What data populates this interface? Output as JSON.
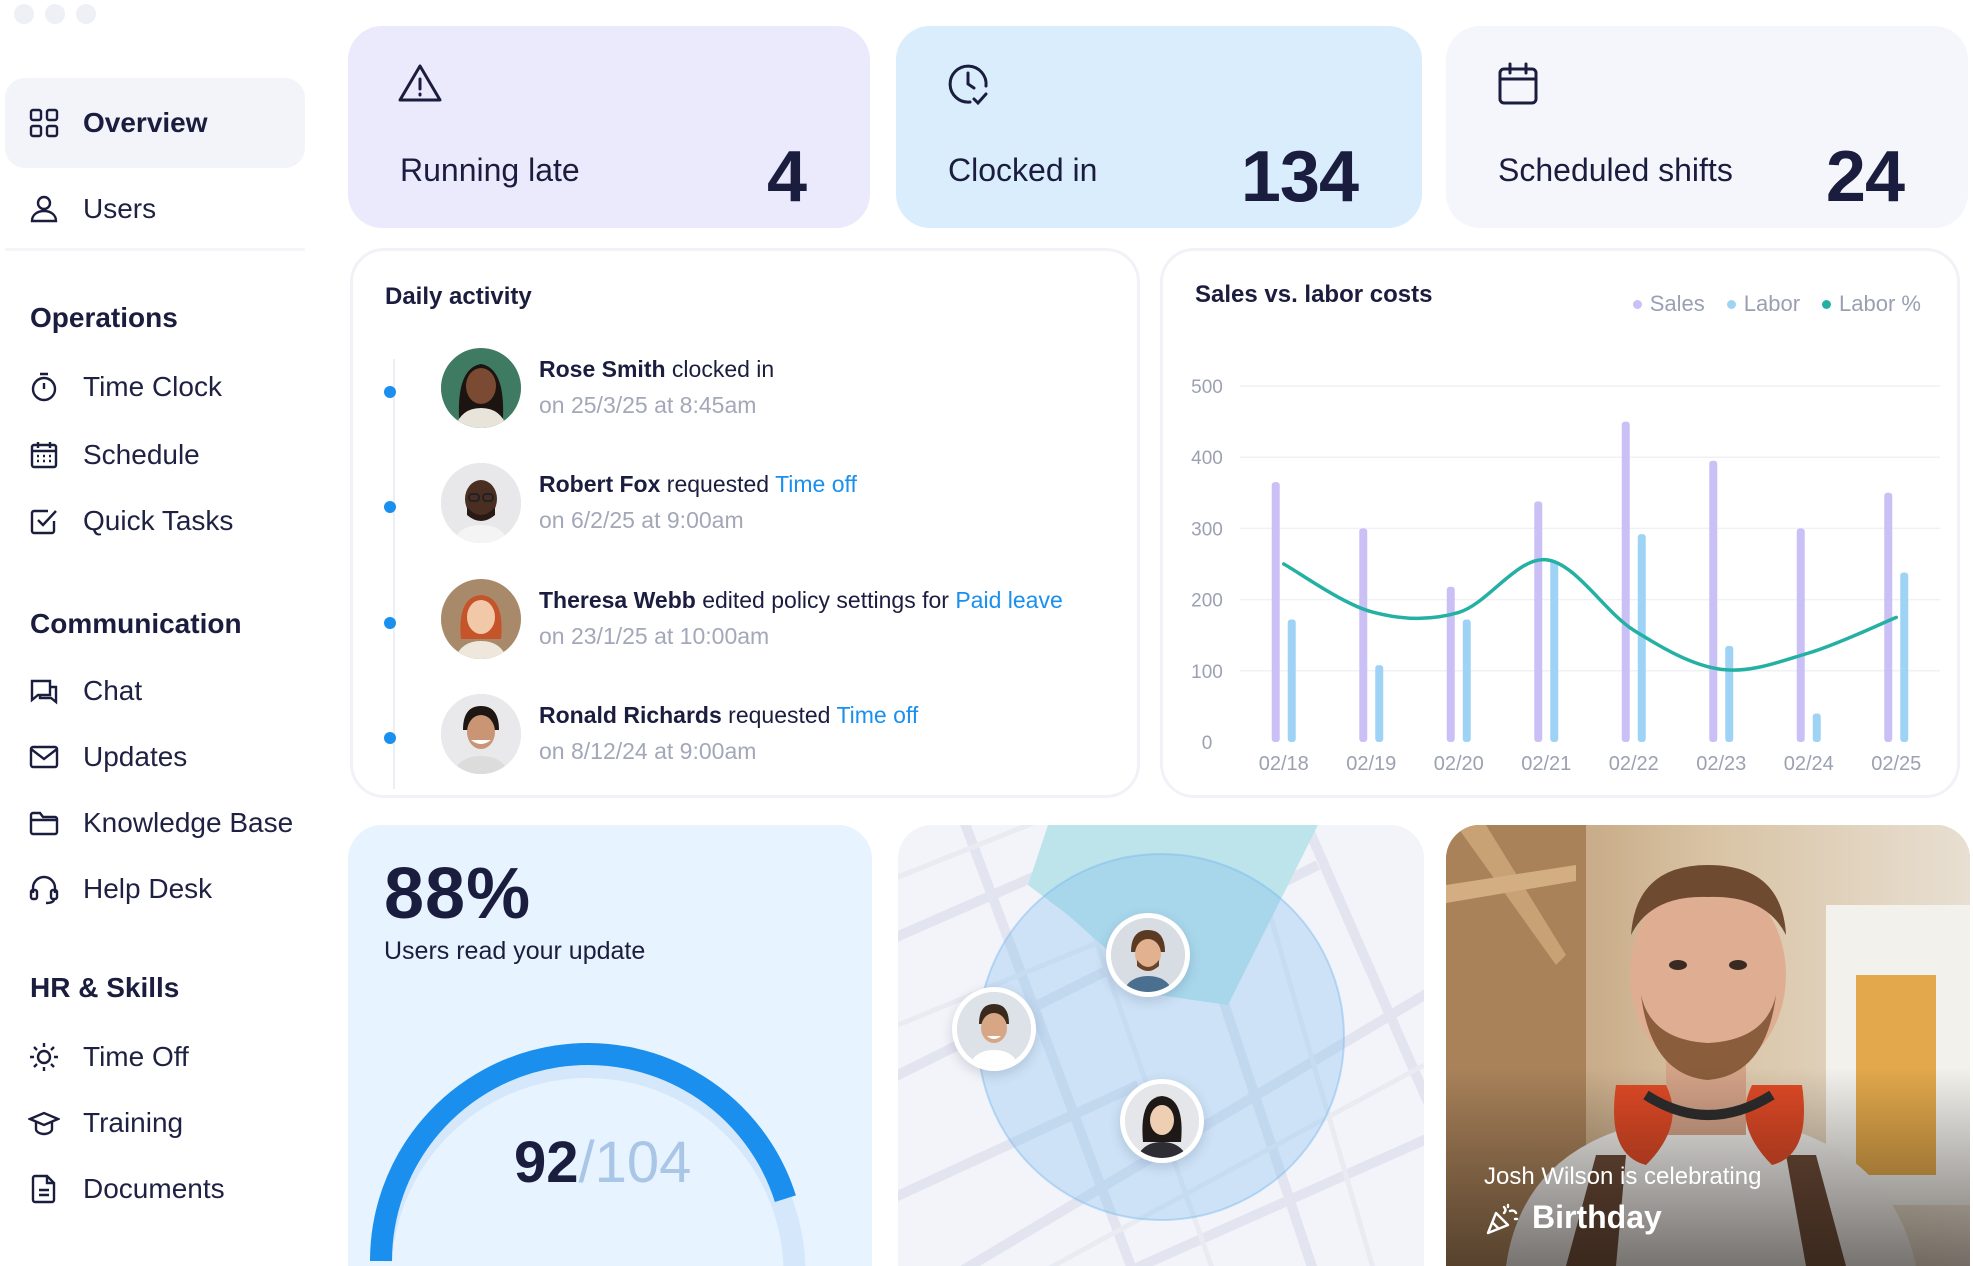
{
  "sidebar": {
    "top_items": [
      {
        "label": "Overview",
        "icon": "grid-icon",
        "active": true
      },
      {
        "label": "Users",
        "icon": "user-icon"
      }
    ],
    "sections": [
      {
        "title": "Operations",
        "items": [
          {
            "label": "Time Clock",
            "icon": "stopwatch-icon"
          },
          {
            "label": "Schedule",
            "icon": "calendar-grid-icon"
          },
          {
            "label": "Quick Tasks",
            "icon": "checkbox-icon"
          }
        ]
      },
      {
        "title": "Communication",
        "items": [
          {
            "label": "Chat",
            "icon": "chat-icon"
          },
          {
            "label": "Updates",
            "icon": "mail-icon"
          },
          {
            "label": "Knowledge Base",
            "icon": "folder-icon"
          },
          {
            "label": "Help Desk",
            "icon": "headset-icon"
          }
        ]
      },
      {
        "title": "HR & Skills",
        "items": [
          {
            "label": "Time Off",
            "icon": "sun-icon"
          },
          {
            "label": "Training",
            "icon": "graduation-cap-icon"
          },
          {
            "label": "Documents",
            "icon": "document-icon"
          }
        ]
      }
    ]
  },
  "stats": [
    {
      "label": "Running late",
      "value": "4",
      "icon": "warning-icon",
      "bg": "#ebe9fc"
    },
    {
      "label": "Clocked in",
      "value": "134",
      "icon": "clock-check-icon",
      "bg": "#d9edfd"
    },
    {
      "label": "Scheduled shifts",
      "value": "24",
      "icon": "calendar-icon",
      "bg": "#f4f6fb"
    }
  ],
  "activity": {
    "title": "Daily activity",
    "items": [
      {
        "name": "Rose Smith",
        "action": "clocked in",
        "link": "",
        "time": "on 25/3/25 at 8:45am"
      },
      {
        "name": "Robert Fox",
        "action": "requested",
        "link": "Time off",
        "time": "on 6/2/25 at 9:00am"
      },
      {
        "name": "Theresa Webb",
        "action": "edited policy settings for",
        "link": "Paid leave",
        "time": "on 23/1/25 at 10:00am"
      },
      {
        "name": "Ronald Richards",
        "action": "requested",
        "link": "Time off",
        "time": "on 8/12/24 at 9:00am"
      }
    ]
  },
  "chart_data": {
    "type": "bar",
    "title": "Sales vs. labor costs",
    "categories": [
      "02/18",
      "02/19",
      "02/20",
      "02/21",
      "02/22",
      "02/23",
      "02/24",
      "02/25"
    ],
    "series": [
      {
        "name": "Sales",
        "color": "#cbc0f5",
        "values": [
          365,
          300,
          218,
          338,
          450,
          395,
          300,
          350
        ]
      },
      {
        "name": "Labor",
        "color": "#9fd3f5",
        "values": [
          172,
          108,
          172,
          255,
          292,
          135,
          40,
          238
        ]
      },
      {
        "name": "Labor %",
        "color": "#25b0a4",
        "values": [
          250,
          183,
          182,
          256,
          157,
          102,
          125,
          175
        ]
      }
    ],
    "yticks": [
      0,
      100,
      200,
      300,
      400,
      500
    ],
    "ylim": [
      0,
      500
    ],
    "legend_position": "top-right",
    "grid": true
  },
  "gauge": {
    "percent": "88%",
    "caption": "Users read your update",
    "read": "92",
    "total": "/104",
    "fraction": 0.885,
    "color": "#1a8fee"
  },
  "map": {
    "pins": [
      {
        "name": "map-pin-avatar-1"
      },
      {
        "name": "map-pin-avatar-2"
      },
      {
        "name": "map-pin-avatar-3"
      }
    ]
  },
  "birthday": {
    "caption": "Josh Wilson is celebrating",
    "label": "Birthday",
    "icon": "party-popper-icon"
  }
}
